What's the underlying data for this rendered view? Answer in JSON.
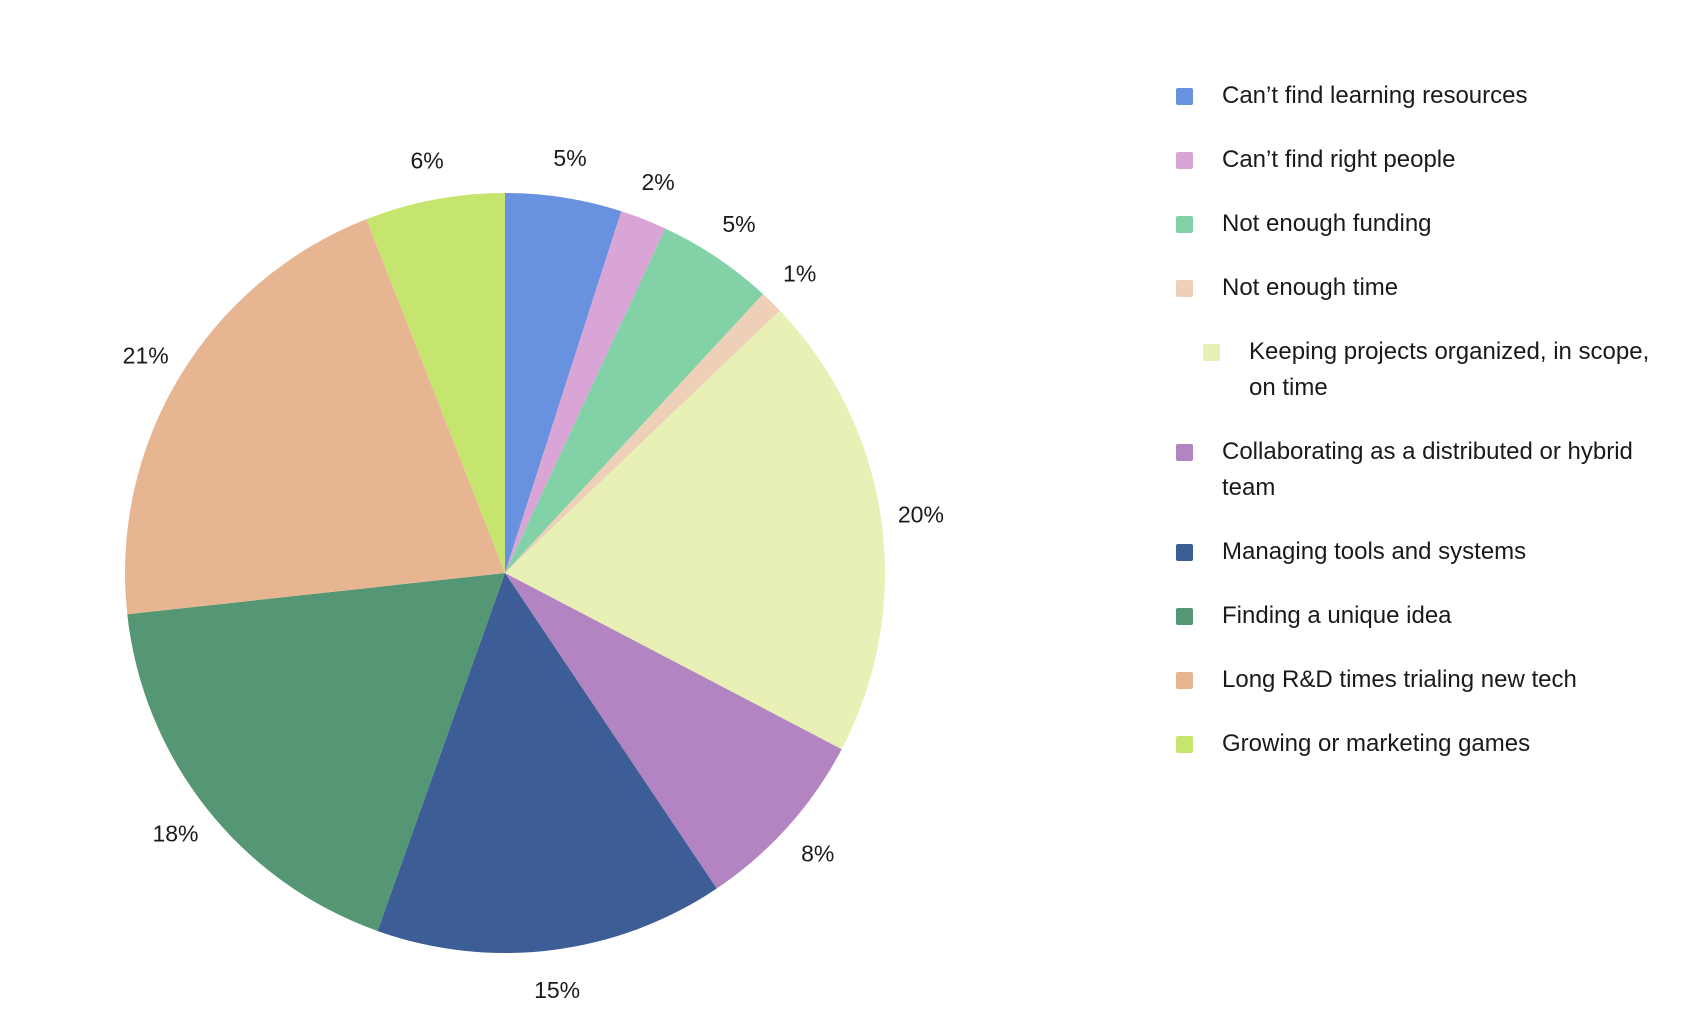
{
  "chart_data": {
    "type": "pie",
    "title": "",
    "legend_position": "right",
    "slices": [
      {
        "label": "Can’t find learning resources",
        "value": 5,
        "value_label": "5%",
        "color": "#6891df"
      },
      {
        "label": "Can’t find right people",
        "value": 2,
        "value_label": "2%",
        "color": "#d9a5d6"
      },
      {
        "label": "Not enough funding",
        "value": 5,
        "value_label": "5%",
        "color": "#83d2a7"
      },
      {
        "label": "Not enough time",
        "value": 1,
        "value_label": "1%",
        "color": "#edd0b7"
      },
      {
        "label": "Keeping projects organized, in scope, on time",
        "value": 20,
        "value_label": "20%",
        "color": "#e8f0b5"
      },
      {
        "label": "Collaborating as a distributed or hybrid team",
        "value": 8,
        "value_label": "8%",
        "color": "#b384c2"
      },
      {
        "label": "Managing tools and systems",
        "value": 15,
        "value_label": "15%",
        "color": "#3d5d96"
      },
      {
        "label": "Finding a unique idea",
        "value": 18,
        "value_label": "18%",
        "color": "#559674"
      },
      {
        "label": "Long R&D times trialing new tech",
        "value": 21,
        "value_label": "21%",
        "color": "#e7b592"
      },
      {
        "label": "Growing or marketing games",
        "value": 6,
        "value_label": "6%",
        "color": "#c5e56f"
      }
    ]
  }
}
